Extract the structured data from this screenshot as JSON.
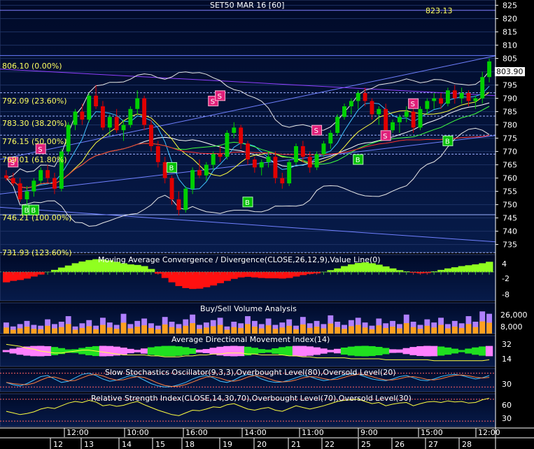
{
  "title": "SET50 MAR 16   [60]",
  "price_panel": {
    "high_label": "823.13",
    "last_price": "803.90",
    "y_ticks": [
      825,
      820,
      815,
      810,
      805,
      800,
      795,
      790,
      785,
      780,
      775,
      770,
      765,
      760,
      755,
      750,
      745,
      740,
      735
    ],
    "fib_levels": [
      {
        "label": "806.10 (0.00%)",
        "value": 806.1
      },
      {
        "label": "792.09 (23.60%)",
        "value": 792.09
      },
      {
        "label": "783.30 (38.20%)",
        "value": 783.3
      },
      {
        "label": "776.15 (50.00%)",
        "value": 776.15
      },
      {
        "label": "769.01 (61.80%)",
        "value": 769.01
      },
      {
        "label": "746.21 (100.00%)",
        "value": 746.21
      },
      {
        "label": "731.93 (123.60%)",
        "value": 731.93
      }
    ],
    "signal_letters": {
      "buy": "B",
      "sell": "S"
    }
  },
  "panels": {
    "macd": {
      "title": "Moving Average Convergence / Divergence(CLOSE,26,12,9),Value Line(0)",
      "ticks": [
        "4",
        "-2",
        "-8"
      ]
    },
    "volume": {
      "title": "Buy/Sell Volume Analysis",
      "ticks": [
        "26,000",
        "8,000"
      ]
    },
    "adx": {
      "title": "Average Directional Movement Index(14)",
      "ticks": [
        "32",
        "14"
      ]
    },
    "stoch": {
      "title": "Slow Stochastics Oscillator(9,3,3),Overbought Level(80),Oversold Level(20)",
      "ticks": [
        "30"
      ]
    },
    "rsi": {
      "title": "Relative Strength Index(CLOSE,14,30,70),Overbought Level(70),Oversold Level(30)",
      "ticks": [
        "60",
        "30"
      ]
    }
  },
  "time_axis": {
    "time_labels": [
      "12:00",
      "10:00",
      "16:00",
      "14:00",
      "11:00",
      "9:00",
      "15:00",
      "12:00"
    ],
    "date_labels": [
      "12",
      "13",
      "14",
      "15",
      "18",
      "19",
      "20",
      "21",
      "22",
      "25",
      "26",
      "27",
      "28"
    ]
  },
  "colors": {
    "panel_bg": "#071b4a",
    "up_candle": "#00d000",
    "down_candle": "#e00000",
    "buy_marker": "#00c000",
    "sell_marker": "#e0207a",
    "fib_line": "#9ab0ff",
    "label_yellow": "#ffff60"
  },
  "chart_data": {
    "type": "candlestick",
    "title": "SET50 MAR 16   [60]",
    "ylim": [
      732,
      827
    ],
    "bars": [
      [
        761,
        763,
        759,
        760
      ],
      [
        760,
        762,
        757,
        758
      ],
      [
        758,
        760,
        751,
        752
      ],
      [
        752,
        757,
        748,
        755
      ],
      [
        755,
        760,
        753,
        759
      ],
      [
        759,
        764,
        758,
        763
      ],
      [
        763,
        765,
        758,
        760
      ],
      [
        760,
        762,
        754,
        756
      ],
      [
        756,
        771,
        755,
        770
      ],
      [
        770,
        781,
        769,
        780
      ],
      [
        780,
        786,
        778,
        785
      ],
      [
        785,
        788,
        780,
        782
      ],
      [
        782,
        792,
        781,
        791
      ],
      [
        791,
        795,
        786,
        787
      ],
      [
        787,
        789,
        778,
        779
      ],
      [
        779,
        784,
        776,
        783
      ],
      [
        783,
        786,
        777,
        778
      ],
      [
        778,
        782,
        774,
        780
      ],
      [
        780,
        787,
        779,
        786
      ],
      [
        786,
        793,
        784,
        790
      ],
      [
        790,
        791,
        778,
        780
      ],
      [
        780,
        782,
        770,
        772
      ],
      [
        772,
        774,
        764,
        766
      ],
      [
        766,
        768,
        758,
        760
      ],
      [
        760,
        761,
        750,
        752
      ],
      [
        752,
        755,
        746,
        748
      ],
      [
        748,
        757,
        747,
        756
      ],
      [
        756,
        764,
        754,
        763
      ],
      [
        763,
        767,
        760,
        761
      ],
      [
        761,
        766,
        759,
        765
      ],
      [
        765,
        770,
        763,
        769
      ],
      [
        769,
        772,
        766,
        768
      ],
      [
        768,
        778,
        767,
        777
      ],
      [
        777,
        781,
        775,
        779
      ],
      [
        779,
        780,
        771,
        773
      ],
      [
        773,
        774,
        765,
        767
      ],
      [
        767,
        768,
        762,
        764
      ],
      [
        764,
        767,
        761,
        766
      ],
      [
        766,
        770,
        764,
        768
      ],
      [
        768,
        770,
        758,
        760
      ],
      [
        760,
        762,
        756,
        758
      ],
      [
        758,
        767,
        757,
        766
      ],
      [
        766,
        773,
        765,
        772
      ],
      [
        772,
        774,
        766,
        768
      ],
      [
        768,
        770,
        762,
        764
      ],
      [
        764,
        770,
        763,
        769
      ],
      [
        769,
        774,
        768,
        773
      ],
      [
        773,
        778,
        771,
        777
      ],
      [
        777,
        784,
        776,
        783
      ],
      [
        783,
        788,
        782,
        787
      ],
      [
        787,
        790,
        784,
        789
      ],
      [
        789,
        793,
        786,
        792
      ],
      [
        792,
        794,
        787,
        789
      ],
      [
        789,
        790,
        782,
        784
      ],
      [
        784,
        787,
        780,
        786
      ],
      [
        786,
        788,
        776,
        778
      ],
      [
        778,
        782,
        777,
        781
      ],
      [
        781,
        784,
        777,
        783
      ],
      [
        783,
        787,
        781,
        785
      ],
      [
        785,
        789,
        777,
        779
      ],
      [
        779,
        787,
        778,
        786
      ],
      [
        786,
        790,
        784,
        789
      ],
      [
        789,
        792,
        786,
        790
      ],
      [
        790,
        792,
        786,
        788
      ],
      [
        788,
        794,
        787,
        793
      ],
      [
        793,
        795,
        788,
        790
      ],
      [
        790,
        794,
        788,
        792
      ],
      [
        792,
        793,
        787,
        789
      ],
      [
        789,
        791,
        786,
        790
      ],
      [
        790,
        800,
        788,
        798
      ],
      [
        798,
        805,
        796,
        803.9
      ]
    ],
    "buy_signals": [
      [
        3,
        748
      ],
      [
        4,
        748
      ],
      [
        24,
        764
      ],
      [
        35,
        751
      ],
      [
        51,
        767
      ],
      [
        64,
        774
      ]
    ],
    "sell_signals": [
      [
        1,
        766
      ],
      [
        5,
        771
      ],
      [
        30,
        789
      ],
      [
        31,
        791
      ],
      [
        45,
        778
      ],
      [
        55,
        776
      ],
      [
        59,
        788
      ]
    ],
    "macd": [
      -3.5,
      -3,
      -2.7,
      -2.2,
      -1.5,
      -0.8,
      0,
      0.7,
      1.5,
      2.2,
      3,
      3.6,
      4.1,
      4.4,
      4.3,
      4,
      3.5,
      3,
      2.6,
      2.4,
      2,
      1,
      -0.5,
      -2,
      -3.5,
      -4.8,
      -5.5,
      -5.8,
      -5.7,
      -5.2,
      -4.6,
      -3.8,
      -3,
      -2.3,
      -1.8,
      -1.6,
      -1.8,
      -2,
      -2.1,
      -2.1,
      -2.2,
      -2,
      -1.5,
      -1,
      -0.6,
      -0.4,
      0,
      0.6,
      1.2,
      2,
      2.6,
      3.1,
      3.3,
      3,
      2.5,
      1.9,
      1.2,
      0.6,
      0.2,
      -0.2,
      -0.4,
      -0.3,
      0.2,
      0.7,
      1.2,
      1.6,
      2,
      2.3,
      2.6,
      3,
      3.5
    ],
    "volume": [
      14,
      9,
      12,
      16,
      11,
      10,
      18,
      12,
      15,
      22,
      9,
      13,
      17,
      10,
      20,
      14,
      11,
      25,
      12,
      16,
      19,
      13,
      10,
      21,
      15,
      12,
      18,
      24,
      11,
      14,
      17,
      20,
      9,
      15,
      13,
      22,
      16,
      12,
      19,
      11,
      14,
      18,
      10,
      21,
      13,
      16,
      12,
      23,
      15,
      11,
      17,
      20,
      14,
      10,
      19,
      13,
      16,
      12,
      24,
      15,
      11,
      18,
      14,
      20,
      12,
      16,
      13,
      22,
      15,
      28,
      25
    ],
    "adx": [
      28,
      27,
      26,
      24,
      23,
      21,
      20,
      19,
      19,
      20,
      21,
      22,
      22,
      21,
      20,
      19,
      18,
      17,
      17,
      17,
      17,
      16,
      16,
      15,
      15,
      15,
      16,
      16,
      17,
      17,
      18,
      18,
      19,
      19,
      19,
      18,
      18,
      17,
      17,
      17,
      17,
      16,
      16,
      15,
      15,
      14,
      14,
      14,
      14,
      14,
      13,
      13,
      13,
      13,
      13,
      12,
      12,
      12,
      12,
      12,
      12,
      12,
      11,
      11,
      11,
      11,
      11,
      11,
      11,
      11,
      12
    ],
    "stoch_k": [
      40,
      30,
      25,
      35,
      50,
      65,
      70,
      55,
      40,
      45,
      60,
      75,
      80,
      70,
      55,
      45,
      50,
      60,
      70,
      65,
      50,
      35,
      25,
      20,
      22,
      30,
      40,
      55,
      65,
      70,
      60,
      45,
      40,
      50,
      65,
      75,
      70,
      55,
      45,
      40,
      42,
      50,
      60,
      70,
      65,
      55,
      48,
      52,
      62,
      72,
      78,
      75,
      65,
      55,
      50,
      48,
      55,
      65,
      70,
      60,
      50,
      48,
      55,
      65,
      72,
      75,
      70,
      62,
      55,
      60,
      70
    ],
    "rsi": [
      48,
      45,
      42,
      44,
      47,
      52,
      55,
      53,
      58,
      63,
      66,
      64,
      68,
      65,
      58,
      60,
      57,
      59,
      63,
      66,
      60,
      55,
      50,
      46,
      42,
      40,
      45,
      50,
      49,
      52,
      56,
      55,
      60,
      62,
      57,
      52,
      50,
      53,
      55,
      50,
      48,
      53,
      58,
      55,
      52,
      55,
      58,
      62,
      66,
      68,
      69,
      70,
      66,
      62,
      64,
      58,
      61,
      63,
      64,
      58,
      62,
      65,
      66,
      64,
      67,
      65,
      66,
      63,
      64,
      69,
      72
    ]
  }
}
